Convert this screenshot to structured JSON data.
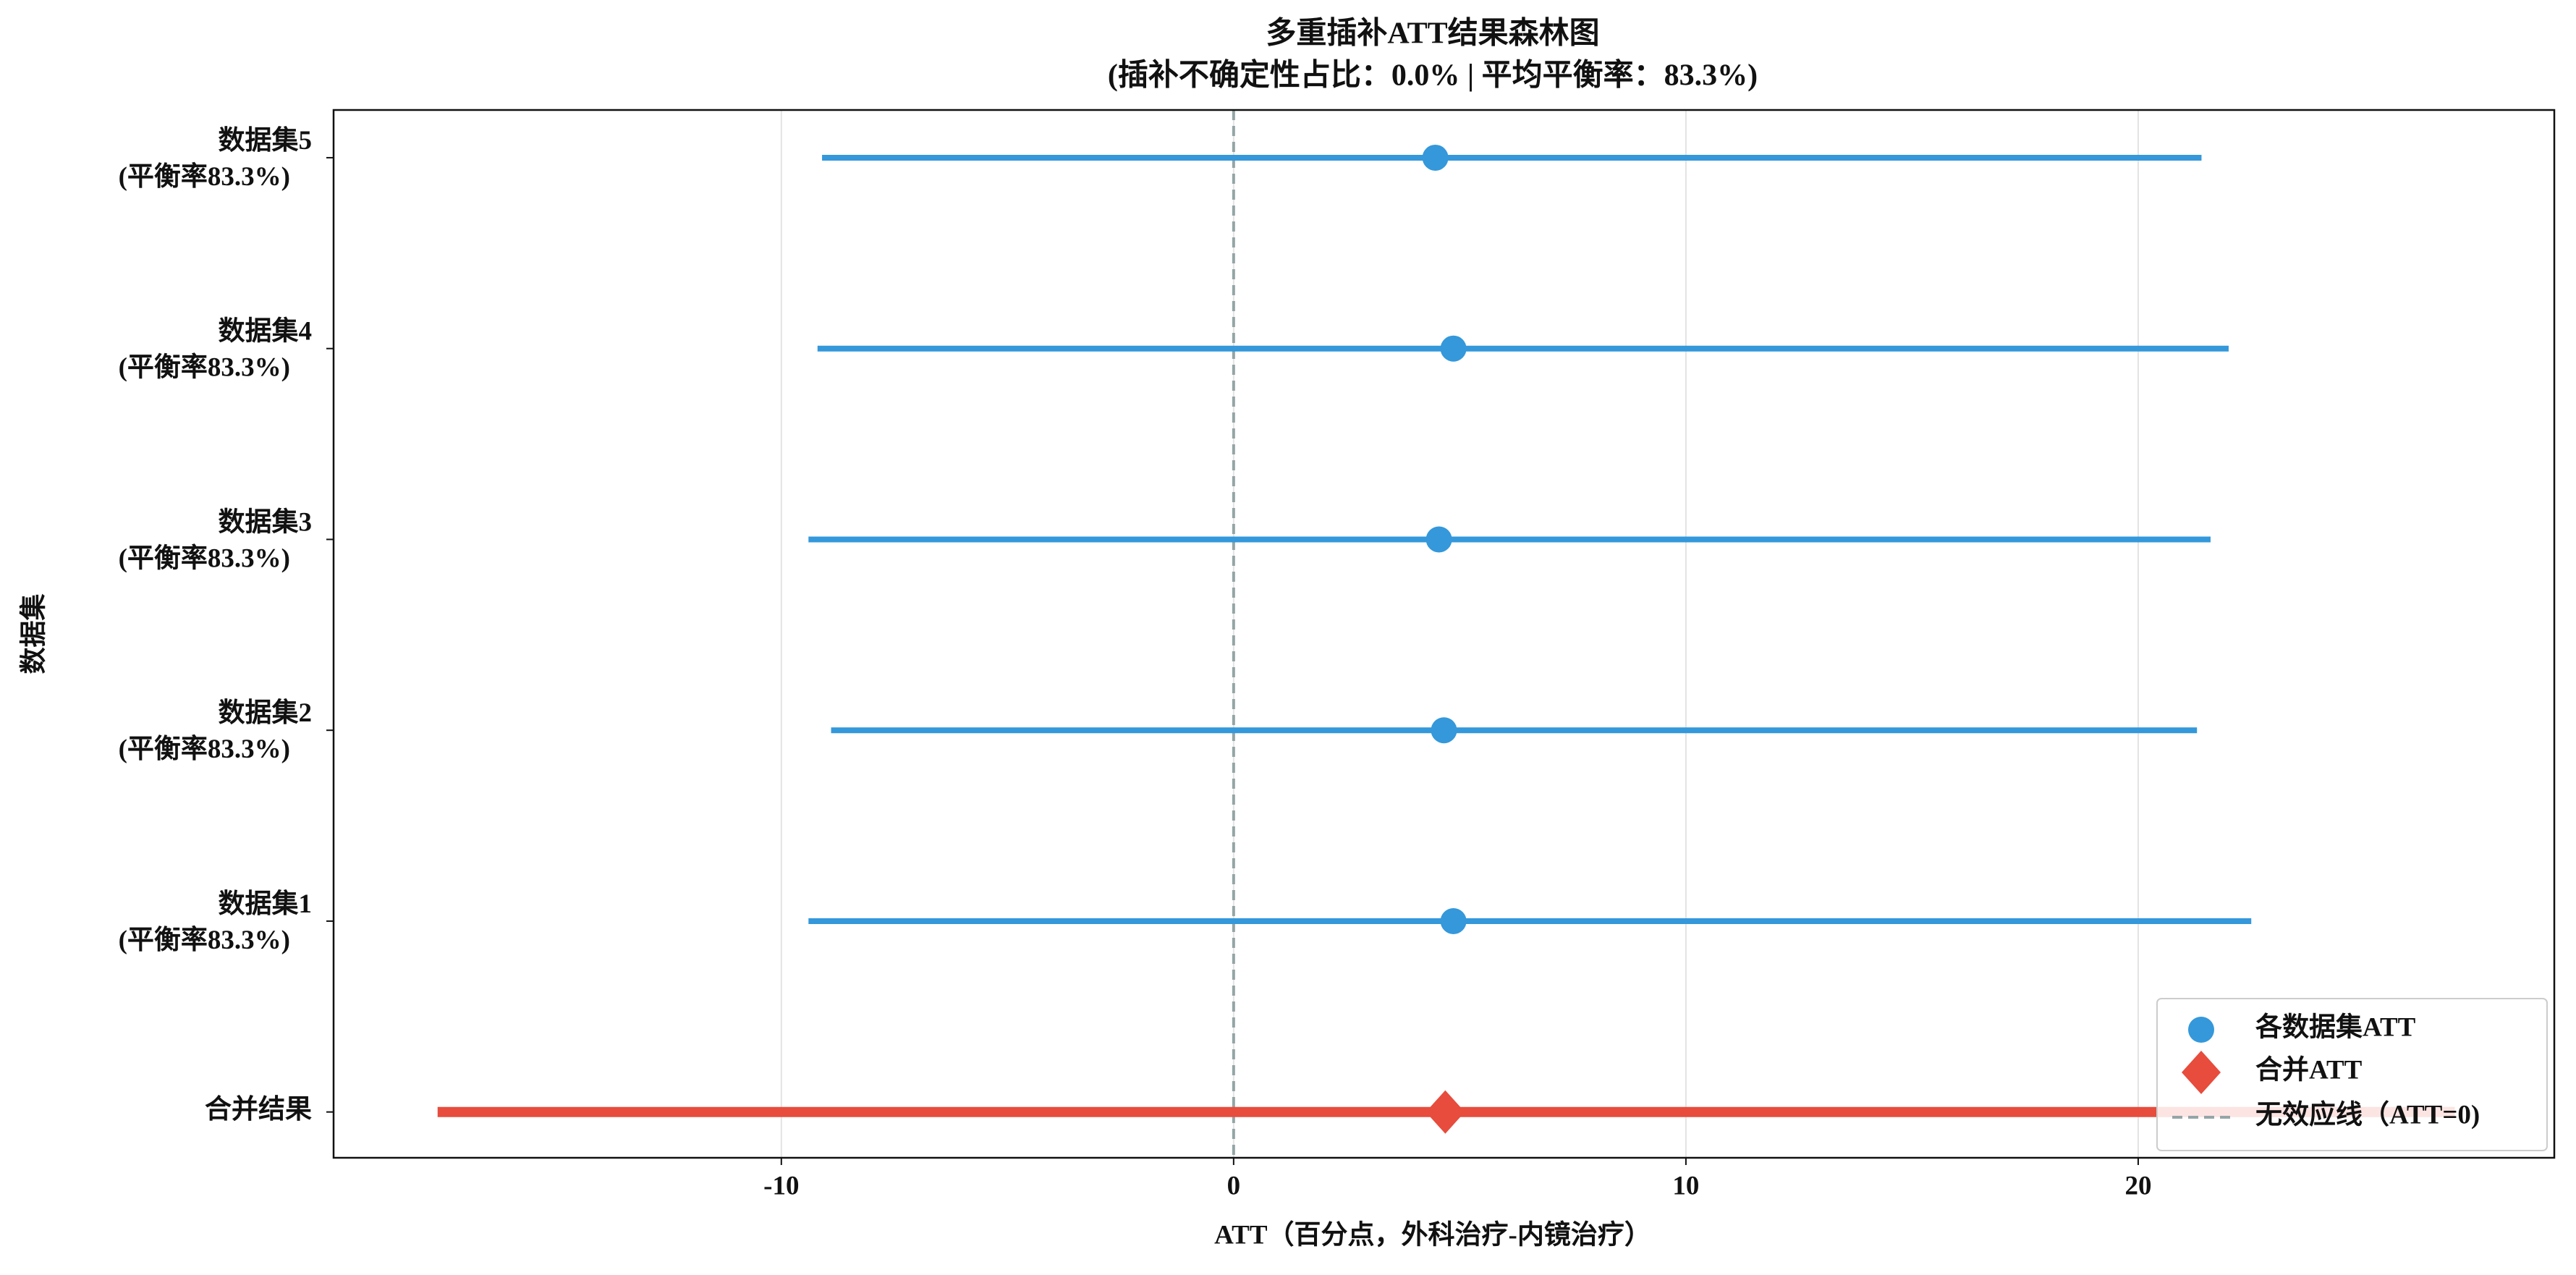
{
  "chart_data": {
    "type": "forest",
    "title": "多重插补ATT结果森林图",
    "subtitle": "(插补不确定性占比：0.0% | 平均平衡率：83.3%)",
    "x_label": "ATT（百分点，外科治疗-内镜治疗）",
    "y_label": "数据集",
    "categories": [
      "合并结果",
      "数据集1\n(平衡率83.3%)",
      "数据集2\n(平衡率83.3%)",
      "数据集3\n(平衡率83.3%)",
      "数据集4\n(平衡率83.3%)",
      "数据集5\n(平衡率83.3%)"
    ],
    "series": [
      {
        "name": "各数据集ATT",
        "color": "#3498db",
        "marker": "circle",
        "values": [
          null,
          4.86,
          4.65,
          4.54,
          4.86,
          4.46
        ],
        "lower": [
          null,
          -9.4,
          -8.9,
          -9.4,
          -9.2,
          -9.1
        ],
        "upper": [
          null,
          22.5,
          21.3,
          21.6,
          22.0,
          21.4
        ]
      },
      {
        "name": "合并ATT",
        "color": "#e74c3c",
        "marker": "diamond",
        "values": [
          4.68,
          null,
          null,
          null,
          null,
          null
        ],
        "lower": [
          -17.6,
          null,
          null,
          null,
          null,
          null
        ],
        "upper": [
          27.0,
          null,
          null,
          null,
          null,
          null
        ]
      }
    ],
    "reference_line": {
      "name": "无效应线（ATT=0)",
      "value": 0,
      "color": "#95a5a6"
    },
    "xlim": [
      -19.9,
      29.2
    ],
    "xticks": [
      -10,
      0,
      10,
      20
    ],
    "grid": true,
    "legend": "lower right"
  }
}
